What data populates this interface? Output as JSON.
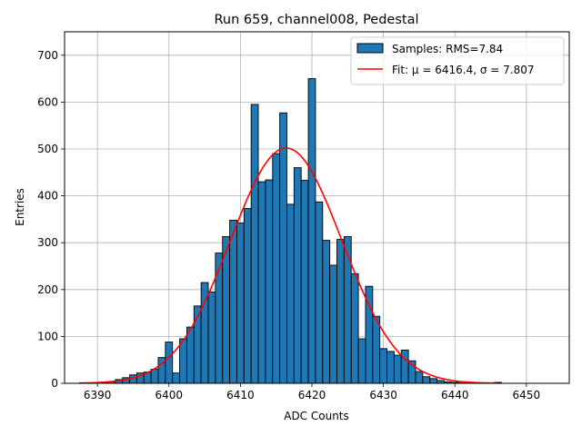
{
  "chart_data": {
    "type": "bar",
    "title": "Run 659, channel008, Pedestal",
    "xlabel": "ADC Counts",
    "ylabel": "Entries",
    "xlim": [
      6385.4,
      6456.0
    ],
    "ylim": [
      0,
      750
    ],
    "xticks": [
      6390,
      6400,
      6410,
      6420,
      6430,
      6440,
      6450
    ],
    "yticks": [
      0,
      100,
      200,
      300,
      400,
      500,
      600,
      700
    ],
    "grid": true,
    "legend": {
      "placement": "top-right"
    },
    "colors": {
      "bars": "#1f77b4",
      "bar_edge": "#000000",
      "fit": "#ff0000",
      "grid": "#b0b0b0"
    },
    "series": [
      {
        "name": "Samples: RMS=7.84",
        "kind": "histogram",
        "bin_width": 1,
        "bins": [
          {
            "x": 6388,
            "y": 1
          },
          {
            "x": 6389,
            "y": 0
          },
          {
            "x": 6390,
            "y": 1
          },
          {
            "x": 6391,
            "y": 2
          },
          {
            "x": 6392,
            "y": 4
          },
          {
            "x": 6393,
            "y": 8
          },
          {
            "x": 6394,
            "y": 12
          },
          {
            "x": 6395,
            "y": 18
          },
          {
            "x": 6396,
            "y": 22
          },
          {
            "x": 6397,
            "y": 24
          },
          {
            "x": 6398,
            "y": 30
          },
          {
            "x": 6399,
            "y": 55
          },
          {
            "x": 6400,
            "y": 88
          },
          {
            "x": 6401,
            "y": 22
          },
          {
            "x": 6402,
            "y": 95
          },
          {
            "x": 6403,
            "y": 120
          },
          {
            "x": 6404,
            "y": 165
          },
          {
            "x": 6405,
            "y": 215
          },
          {
            "x": 6406,
            "y": 195
          },
          {
            "x": 6407,
            "y": 278
          },
          {
            "x": 6408,
            "y": 313
          },
          {
            "x": 6409,
            "y": 348
          },
          {
            "x": 6410,
            "y": 342
          },
          {
            "x": 6411,
            "y": 373
          },
          {
            "x": 6412,
            "y": 595
          },
          {
            "x": 6413,
            "y": 430
          },
          {
            "x": 6414,
            "y": 434
          },
          {
            "x": 6415,
            "y": 490
          },
          {
            "x": 6416,
            "y": 577
          },
          {
            "x": 6417,
            "y": 382
          },
          {
            "x": 6418,
            "y": 460
          },
          {
            "x": 6419,
            "y": 433
          },
          {
            "x": 6420,
            "y": 650
          },
          {
            "x": 6421,
            "y": 387
          },
          {
            "x": 6422,
            "y": 305
          },
          {
            "x": 6423,
            "y": 252
          },
          {
            "x": 6424,
            "y": 307
          },
          {
            "x": 6425,
            "y": 313
          },
          {
            "x": 6426,
            "y": 234
          },
          {
            "x": 6427,
            "y": 95
          },
          {
            "x": 6428,
            "y": 207
          },
          {
            "x": 6429,
            "y": 143
          },
          {
            "x": 6430,
            "y": 74
          },
          {
            "x": 6431,
            "y": 68
          },
          {
            "x": 6432,
            "y": 60
          },
          {
            "x": 6433,
            "y": 71
          },
          {
            "x": 6434,
            "y": 48
          },
          {
            "x": 6435,
            "y": 25
          },
          {
            "x": 6436,
            "y": 14
          },
          {
            "x": 6437,
            "y": 10
          },
          {
            "x": 6438,
            "y": 6
          },
          {
            "x": 6439,
            "y": 3
          },
          {
            "x": 6440,
            "y": 2
          },
          {
            "x": 6441,
            "y": 1
          },
          {
            "x": 6442,
            "y": 1
          },
          {
            "x": 6443,
            "y": 0
          },
          {
            "x": 6444,
            "y": 0
          },
          {
            "x": 6445,
            "y": 0
          },
          {
            "x": 6446,
            "y": 2
          }
        ]
      },
      {
        "name": "Fit: μ = 6416.4, σ = 7.807",
        "kind": "gaussian-fit",
        "mu": 6416.4,
        "sigma": 7.807,
        "amplitude": 502,
        "x_range": [
          6388,
          6446
        ]
      }
    ]
  }
}
